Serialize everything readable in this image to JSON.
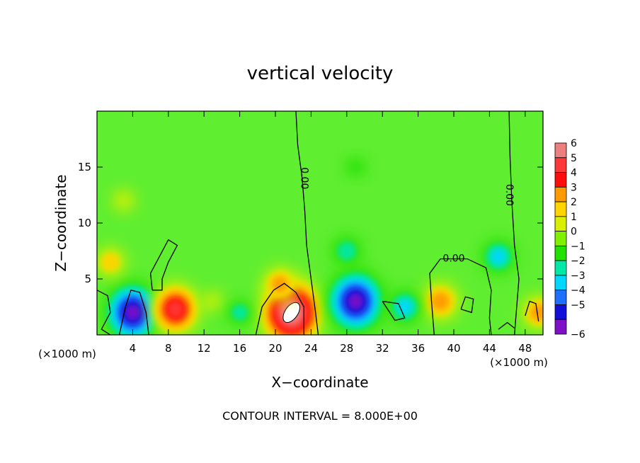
{
  "chart_data": {
    "type": "heatmap",
    "title": "vertical velocity",
    "xlabel": "X−coordinate",
    "ylabel": "Z−coordinate",
    "x_unit_left": "(×1000 m)",
    "x_unit_right": "(×1000 m)",
    "xlim": [
      0,
      50
    ],
    "ylim": [
      0,
      20
    ],
    "xticks": [
      4,
      8,
      12,
      16,
      20,
      24,
      28,
      32,
      36,
      40,
      44,
      48
    ],
    "yticks": [
      5,
      10,
      15
    ],
    "colorbar": {
      "levels": [
        6,
        5,
        4,
        3,
        2,
        1,
        0,
        -1,
        -2,
        -3,
        -4,
        -5,
        -6
      ],
      "labels": [
        "6",
        "5",
        "4",
        "3",
        "2",
        "1",
        "0",
        "−1",
        "−2",
        "−3",
        "−4",
        "−5",
        "−6"
      ],
      "colors": [
        "#ee7f7f",
        "#ff3838",
        "#ff0d0d",
        "#ff9a00",
        "#ffd400",
        "#d8f000",
        "#7ef000",
        "#22e000",
        "#00e8a8",
        "#00d8ff",
        "#2070ff",
        "#1010d8",
        "#8010c8"
      ]
    },
    "contour_labels": [
      {
        "text": "0.00",
        "x": 23.2,
        "z": 14
      },
      {
        "text": "0.00",
        "x": 46.2,
        "z": 12.5
      },
      {
        "text": "0.00",
        "x": 40,
        "z": 6.8
      }
    ],
    "footer": "CONTOUR INTERVAL = 8.000E+00",
    "background_color": "#60ee30",
    "features": [
      {
        "x": 4,
        "z": 2,
        "w": -5.5
      },
      {
        "x": 8.8,
        "z": 2.3,
        "w": 4.5
      },
      {
        "x": 1.5,
        "z": 6.5,
        "w": 2
      },
      {
        "x": 21.8,
        "z": 2.0,
        "w": 6.5
      },
      {
        "x": 20.5,
        "z": 4.5,
        "w": 2.5
      },
      {
        "x": 29,
        "z": 3.0,
        "w": -5.8
      },
      {
        "x": 28,
        "z": 7.5,
        "w": -2
      },
      {
        "x": 29,
        "z": 15,
        "w": -0.8
      },
      {
        "x": 45,
        "z": 7,
        "w": -2.5
      },
      {
        "x": 38.5,
        "z": 3.0,
        "w": 3.0
      },
      {
        "x": 49.5,
        "z": 2,
        "w": 2.5
      },
      {
        "x": 34.5,
        "z": 2.5,
        "w": -2.5
      },
      {
        "x": 3,
        "z": 12,
        "w": 1.0
      },
      {
        "x": 13,
        "z": 3,
        "w": 0.8
      },
      {
        "x": 16,
        "z": 2,
        "w": -1.5
      }
    ]
  }
}
